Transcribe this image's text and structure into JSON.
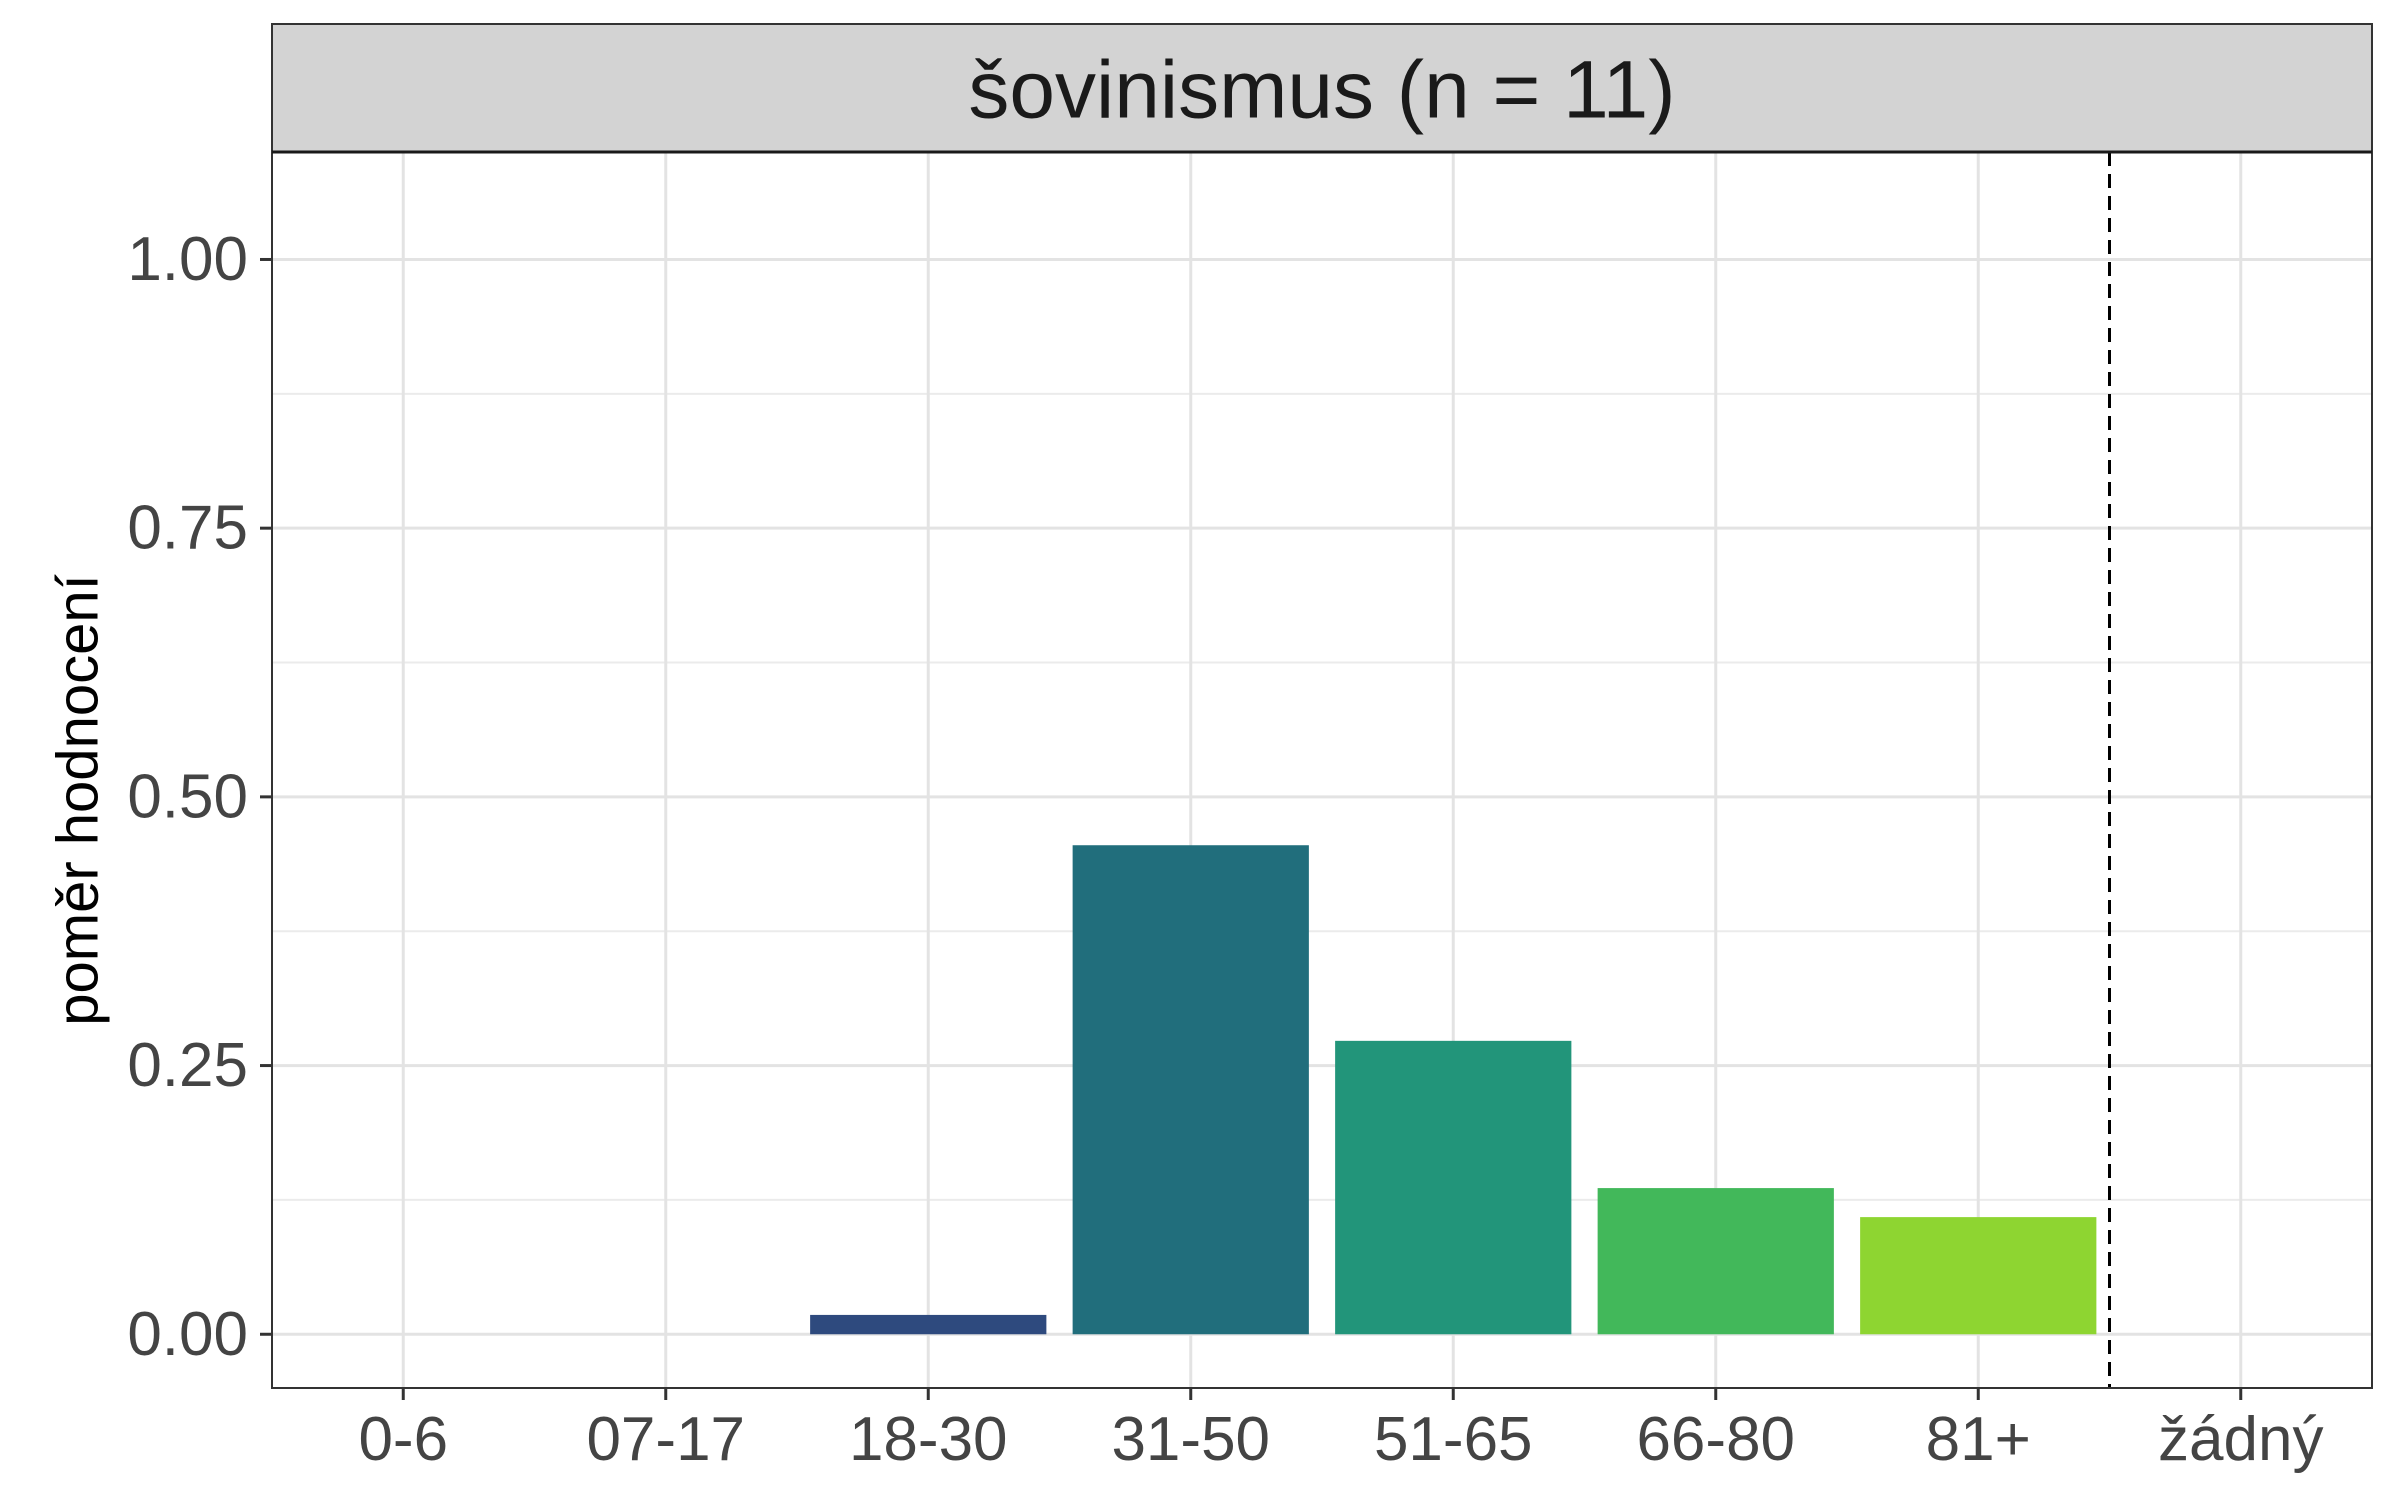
{
  "chart_data": {
    "type": "bar",
    "title": "šovinismus (n = 11)",
    "xlabel": "",
    "ylabel": "poměr hodnocení",
    "categories": [
      "0-6",
      "07-17",
      "18-30",
      "31-50",
      "51-65",
      "66-80",
      "81+",
      "žádný"
    ],
    "values": [
      0,
      0,
      0.018,
      0.455,
      0.273,
      0.136,
      0.109,
      0
    ],
    "bar_colors": [
      "#482173",
      "#3d4d8a",
      "#2e4a7e",
      "#216e7c",
      "#22957a",
      "#42b85a",
      "#8ed531",
      "#fde725"
    ],
    "ylim": [
      -0.05,
      1.1
    ],
    "yticks": [
      0,
      0.25,
      0.5,
      0.75,
      1
    ],
    "ytick_labels": [
      "0.00",
      "0.25",
      "0.50",
      "0.75",
      "1.00"
    ],
    "vline_between": [
      "81+",
      "žádný"
    ],
    "grid": true,
    "legend": "none"
  }
}
